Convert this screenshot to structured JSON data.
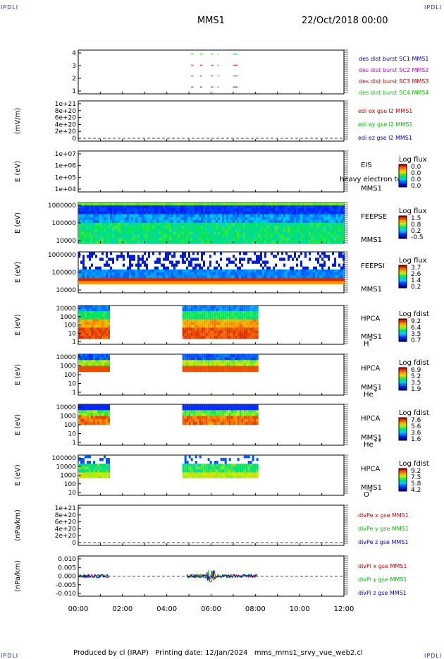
{
  "page": {
    "corner_text": "IPDLI",
    "title_left": "MMS1",
    "title_right": "22/Oct/2018 00:00",
    "footer": "Produced by cl (IRAP)   Printing date: 12/Jan/2024   mms_mms1_srvy_vue_web2.cl"
  },
  "colors": {
    "mms1": "#0000cc",
    "mms2": "#cc00cc",
    "mms3": "#cc0000",
    "mms4": "#00cc00",
    "ex": "#cc0000",
    "ey": "#00bb00",
    "ez": "#0000cc"
  },
  "chart_data": [
    {
      "type": "line",
      "id": "des-dist",
      "yticks": [
        "4",
        "3",
        "2",
        "1"
      ],
      "legend": [
        "des dist burst SC1 MMS1",
        "des dist burst SC2 MMS2",
        "des dist burst SC3 MMS3",
        "des dist burst SC4 MMS4"
      ],
      "series": [
        {
          "name": "des dist burst SC1 MMS1",
          "level": 4,
          "segments_hours": [
            [
              5.1,
              5.2
            ],
            [
              5.5,
              5.6
            ],
            [
              6.0,
              6.1
            ],
            [
              6.3,
              6.35
            ],
            [
              7.0,
              7.2
            ]
          ]
        },
        {
          "name": "des dist burst SC2 MMS2",
          "level": 3,
          "segments_hours": [
            [
              5.1,
              5.2
            ],
            [
              5.5,
              5.6
            ],
            [
              6.0,
              6.1
            ],
            [
              6.3,
              6.35
            ],
            [
              7.0,
              7.2
            ]
          ]
        },
        {
          "name": "des dist burst SC3 MMS3",
          "level": 2,
          "segments_hours": [
            [
              5.1,
              5.2
            ],
            [
              5.5,
              5.6
            ],
            [
              6.0,
              6.1
            ],
            [
              6.3,
              6.35
            ],
            [
              7.0,
              7.2
            ]
          ]
        },
        {
          "name": "des dist burst SC4 MMS4",
          "level": 1,
          "segments_hours": [
            [
              5.1,
              5.2
            ],
            [
              5.5,
              5.6
            ],
            [
              6.0,
              6.1
            ],
            [
              6.3,
              6.35
            ],
            [
              7.0,
              7.2
            ]
          ]
        }
      ]
    },
    {
      "type": "line",
      "id": "edi",
      "ylabel": "(mV/m)",
      "yticks": [
        "1e+21",
        "8e+20",
        "6e+20",
        "4e+20",
        "2e+20",
        "0"
      ],
      "legend": [
        "edi ex gse l2 MMS1",
        "edi ey gse l2 MMS1",
        "edi ez gse l2 MMS1"
      ]
    },
    {
      "type": "heatmap",
      "id": "eis",
      "ylabel": "E (eV)",
      "yticks": [
        "1e+07",
        "1e+06",
        "1e+05",
        "1e+04"
      ],
      "side_label": [
        "EIS",
        "MMS1"
      ],
      "overlay_text": "heavy electron to",
      "colorbar": {
        "title": "Log flux",
        "ticks": [
          "0.0",
          "0.0",
          "0.0",
          "0.0"
        ]
      }
    },
    {
      "type": "heatmap",
      "id": "feepse",
      "ylabel": "E (eV)",
      "yticks": [
        "1000000",
        "100000",
        "10000"
      ],
      "side_label": [
        "FEEPSE",
        "MMS1"
      ],
      "colorbar": {
        "title": "Log flux",
        "ticks": [
          "1.5",
          "0.8",
          "0.2",
          "-0.5"
        ]
      },
      "coverage_hours": [
        [
          0,
          12
        ]
      ]
    },
    {
      "type": "heatmap",
      "id": "feepsi",
      "ylabel": "E (eV)",
      "yticks": [
        "1000000",
        "100000",
        "10000"
      ],
      "side_label": [
        "FEEPSI",
        "MMS1"
      ],
      "colorbar": {
        "title": "Log flux",
        "ticks": [
          "3.7",
          "2.6",
          "1.4",
          "0.2"
        ]
      },
      "coverage_hours": [
        [
          0,
          12
        ]
      ]
    },
    {
      "type": "heatmap",
      "id": "hpca-h",
      "ylabel": "E (eV)",
      "yticks": [
        "10000",
        "1000",
        "100",
        "10",
        "1"
      ],
      "side_label": [
        "HPCA",
        "MMS1"
      ],
      "species": "H",
      "species_sup": "+",
      "colorbar": {
        "title": "Log fdist",
        "ticks": [
          "9.2",
          "6.4",
          "3.5",
          "0.7"
        ]
      },
      "coverage_hours": [
        [
          0,
          1.4
        ],
        [
          4.7,
          8.1
        ]
      ]
    },
    {
      "type": "heatmap",
      "id": "hpca-he",
      "ylabel": "E (eV)",
      "yticks": [
        "10000",
        "1000",
        "100",
        "10",
        "1"
      ],
      "side_label": [
        "HPCA",
        "MMS1"
      ],
      "species": "He",
      "species_sup": "+",
      "colorbar": {
        "title": "Log fdist",
        "ticks": [
          "6.9",
          "5.2",
          "3.5",
          "1.9"
        ]
      },
      "coverage_hours": [
        [
          0,
          1.4
        ],
        [
          4.7,
          8.1
        ]
      ]
    },
    {
      "type": "heatmap",
      "id": "hpca-hepp",
      "ylabel": "E (eV)",
      "yticks": [
        "10000",
        "1000",
        "100",
        "10",
        "1"
      ],
      "side_label": [
        "HPCA",
        "MMS1"
      ],
      "species": "He",
      "species_sup": "++",
      "colorbar": {
        "title": "Log fdist",
        "ticks": [
          "7.6",
          "5.6",
          "3.6",
          "1.6"
        ]
      },
      "coverage_hours": [
        [
          0,
          1.4
        ],
        [
          4.7,
          8.1
        ]
      ]
    },
    {
      "type": "heatmap",
      "id": "hpca-o",
      "ylabel": "E (eV)",
      "yticks": [
        "100000",
        "10000",
        "1000",
        "100",
        "10"
      ],
      "side_label": [
        "HPCA",
        "MMS1"
      ],
      "species": "O",
      "species_sup": "+",
      "colorbar": {
        "title": "Log fdist",
        "ticks": [
          "9.2",
          "7.5",
          "5.8",
          "4.2"
        ]
      },
      "coverage_hours": [
        [
          0,
          1.4
        ],
        [
          4.7,
          8.1
        ]
      ]
    },
    {
      "type": "line",
      "id": "divpe",
      "ylabel": "(nPa/km)",
      "yticks": [
        "1e+21",
        "8e+20",
        "6e+20",
        "4e+20",
        "2e+20",
        "0"
      ],
      "legend": [
        "divPe x gse MMS1",
        "divPe y gse MMS1",
        "divPe z gse MMS1"
      ]
    },
    {
      "type": "line",
      "id": "divpi",
      "ylabel": "(nPa/km)",
      "yticks": [
        "0.010",
        "0.005",
        "0.000",
        "-0.005",
        "-0.010"
      ],
      "ylim": [
        -0.013,
        0.013
      ],
      "legend": [
        "divPi x gse MMS1",
        "divPi y gse MMS1",
        "divPi z gse MMS1"
      ],
      "coverage_hours": [
        [
          0,
          1.4
        ],
        [
          4.9,
          8.1
        ]
      ]
    }
  ],
  "xaxis": {
    "ticks": [
      "00:00",
      "02:00",
      "04:00",
      "06:00",
      "08:00",
      "10:00",
      "12:00"
    ],
    "range_hours": [
      0,
      12
    ]
  }
}
